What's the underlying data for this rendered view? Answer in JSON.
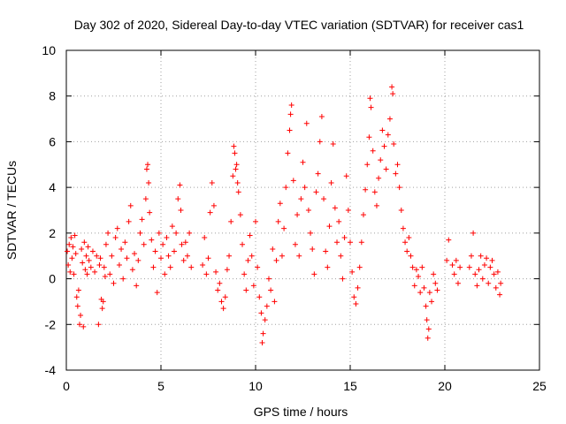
{
  "chart_data": {
    "type": "scatter",
    "title": "Day 302 of 2020, Sidereal Day-to-day VTEC variation (SDTVAR) for receiver cas1",
    "xlabel": "GPS time / hours",
    "ylabel": "SDTVAR / TECUs",
    "xlim": [
      0,
      25
    ],
    "ylim": [
      -4,
      10
    ],
    "xticks": [
      0,
      5,
      10,
      15,
      20,
      25
    ],
    "yticks": [
      -4,
      -2,
      0,
      2,
      4,
      6,
      8,
      10
    ],
    "grid": true,
    "marker": "+",
    "color": "#ff0000",
    "series": [
      {
        "name": "SDTVAR",
        "points": [
          [
            0.05,
            1.2
          ],
          [
            0.1,
            0.6
          ],
          [
            0.15,
            1.5
          ],
          [
            0.2,
            0.3
          ],
          [
            0.25,
            1.8
          ],
          [
            0.3,
            0.9
          ],
          [
            0.35,
            1.4
          ],
          [
            0.4,
            0.2
          ],
          [
            0.45,
            1.9
          ],
          [
            0.5,
            1.1
          ],
          [
            0.55,
            -0.8
          ],
          [
            0.6,
            -1.2
          ],
          [
            0.65,
            -0.5
          ],
          [
            0.7,
            -2.0
          ],
          [
            0.75,
            -1.6
          ],
          [
            0.8,
            1.3
          ],
          [
            0.85,
            0.7
          ],
          [
            0.9,
            -2.1
          ],
          [
            0.95,
            1.6
          ],
          [
            1.0,
            0.4
          ],
          [
            1.05,
            1.0
          ],
          [
            1.1,
            0.2
          ],
          [
            1.15,
            1.4
          ],
          [
            1.2,
            0.8
          ],
          [
            1.3,
            0.5
          ],
          [
            1.4,
            1.2
          ],
          [
            1.5,
            0.3
          ],
          [
            1.6,
            1.0
          ],
          [
            1.7,
            -2.0
          ],
          [
            1.75,
            0.6
          ],
          [
            1.8,
            0.9
          ],
          [
            1.85,
            -0.9
          ],
          [
            1.9,
            -1.3
          ],
          [
            1.95,
            -1.0
          ],
          [
            2.0,
            0.5
          ],
          [
            2.05,
            0.1
          ],
          [
            2.1,
            1.5
          ],
          [
            2.2,
            2.0
          ],
          [
            2.3,
            0.2
          ],
          [
            2.4,
            1.0
          ],
          [
            2.5,
            -0.2
          ],
          [
            2.6,
            1.8
          ],
          [
            2.7,
            2.2
          ],
          [
            2.8,
            0.6
          ],
          [
            2.9,
            1.3
          ],
          [
            3.0,
            0.0
          ],
          [
            3.1,
            1.6
          ],
          [
            3.2,
            0.9
          ],
          [
            3.3,
            2.5
          ],
          [
            3.4,
            3.2
          ],
          [
            3.5,
            0.4
          ],
          [
            3.6,
            1.1
          ],
          [
            3.7,
            -0.3
          ],
          [
            3.8,
            0.8
          ],
          [
            3.9,
            2.0
          ],
          [
            4.0,
            2.6
          ],
          [
            4.1,
            1.5
          ],
          [
            4.2,
            3.5
          ],
          [
            4.25,
            4.8
          ],
          [
            4.3,
            5.0
          ],
          [
            4.35,
            4.2
          ],
          [
            4.4,
            2.9
          ],
          [
            4.5,
            1.7
          ],
          [
            4.6,
            0.5
          ],
          [
            4.7,
            1.2
          ],
          [
            4.8,
            -0.6
          ],
          [
            4.9,
            2.0
          ],
          [
            5.0,
            0.9
          ],
          [
            5.1,
            1.5
          ],
          [
            5.2,
            0.2
          ],
          [
            5.3,
            1.8
          ],
          [
            5.4,
            1.0
          ],
          [
            5.5,
            0.5
          ],
          [
            5.6,
            2.3
          ],
          [
            5.7,
            1.2
          ],
          [
            5.8,
            2.0
          ],
          [
            5.9,
            3.5
          ],
          [
            6.0,
            4.1
          ],
          [
            6.05,
            3.0
          ],
          [
            6.1,
            1.5
          ],
          [
            6.2,
            0.8
          ],
          [
            6.3,
            1.6
          ],
          [
            6.4,
            1.0
          ],
          [
            6.5,
            2.0
          ],
          [
            6.6,
            0.5
          ],
          [
            7.2,
            0.6
          ],
          [
            7.3,
            1.8
          ],
          [
            7.4,
            0.2
          ],
          [
            7.5,
            0.9
          ],
          [
            7.6,
            2.9
          ],
          [
            7.7,
            4.2
          ],
          [
            7.8,
            3.2
          ],
          [
            7.9,
            0.3
          ],
          [
            8.0,
            -0.5
          ],
          [
            8.1,
            -0.2
          ],
          [
            8.2,
            -1.0
          ],
          [
            8.3,
            -1.3
          ],
          [
            8.4,
            -0.8
          ],
          [
            8.5,
            0.4
          ],
          [
            8.6,
            1.0
          ],
          [
            8.7,
            2.5
          ],
          [
            8.8,
            4.5
          ],
          [
            8.85,
            5.8
          ],
          [
            8.9,
            5.5
          ],
          [
            8.95,
            4.8
          ],
          [
            9.0,
            5.0
          ],
          [
            9.05,
            4.2
          ],
          [
            9.1,
            3.8
          ],
          [
            9.2,
            2.8
          ],
          [
            9.3,
            1.5
          ],
          [
            9.4,
            0.2
          ],
          [
            9.5,
            -0.5
          ],
          [
            9.6,
            0.8
          ],
          [
            9.7,
            1.9
          ],
          [
            9.8,
            1.0
          ],
          [
            9.9,
            -0.3
          ],
          [
            10.0,
            2.5
          ],
          [
            10.1,
            0.5
          ],
          [
            10.2,
            -0.8
          ],
          [
            10.3,
            -1.5
          ],
          [
            10.35,
            -2.8
          ],
          [
            10.4,
            -2.4
          ],
          [
            10.5,
            -1.8
          ],
          [
            10.6,
            -1.2
          ],
          [
            10.7,
            0.0
          ],
          [
            10.8,
            -0.5
          ],
          [
            10.9,
            1.3
          ],
          [
            11.0,
            -1.0
          ],
          [
            11.1,
            0.8
          ],
          [
            11.2,
            2.5
          ],
          [
            11.3,
            3.3
          ],
          [
            11.4,
            1.0
          ],
          [
            11.5,
            2.2
          ],
          [
            11.6,
            4.0
          ],
          [
            11.7,
            5.5
          ],
          [
            11.8,
            6.5
          ],
          [
            11.85,
            7.2
          ],
          [
            11.9,
            7.6
          ],
          [
            12.0,
            4.3
          ],
          [
            12.1,
            1.5
          ],
          [
            12.2,
            2.8
          ],
          [
            12.3,
            1.0
          ],
          [
            12.4,
            3.5
          ],
          [
            12.5,
            5.1
          ],
          [
            12.6,
            4.0
          ],
          [
            12.7,
            6.8
          ],
          [
            12.8,
            3.0
          ],
          [
            12.9,
            2.0
          ],
          [
            13.0,
            1.3
          ],
          [
            13.1,
            0.2
          ],
          [
            13.2,
            3.8
          ],
          [
            13.3,
            4.6
          ],
          [
            13.4,
            6.0
          ],
          [
            13.5,
            7.1
          ],
          [
            13.6,
            3.5
          ],
          [
            13.7,
            1.2
          ],
          [
            13.8,
            0.5
          ],
          [
            13.9,
            2.3
          ],
          [
            14.0,
            4.2
          ],
          [
            14.1,
            5.9
          ],
          [
            14.2,
            3.1
          ],
          [
            14.3,
            1.6
          ],
          [
            14.4,
            2.5
          ],
          [
            14.5,
            1.0
          ],
          [
            14.6,
            0.0
          ],
          [
            14.7,
            1.8
          ],
          [
            14.8,
            4.5
          ],
          [
            14.9,
            3.0
          ],
          [
            15.0,
            1.6
          ],
          [
            15.1,
            0.3
          ],
          [
            15.2,
            -0.8
          ],
          [
            15.3,
            -1.1
          ],
          [
            15.4,
            -0.4
          ],
          [
            15.5,
            0.5
          ],
          [
            15.6,
            1.6
          ],
          [
            15.7,
            2.8
          ],
          [
            15.8,
            3.9
          ],
          [
            15.9,
            5.0
          ],
          [
            16.0,
            6.2
          ],
          [
            16.05,
            7.9
          ],
          [
            16.1,
            7.5
          ],
          [
            16.2,
            5.6
          ],
          [
            16.3,
            3.8
          ],
          [
            16.4,
            3.2
          ],
          [
            16.5,
            4.4
          ],
          [
            16.6,
            5.2
          ],
          [
            16.7,
            6.5
          ],
          [
            16.8,
            5.8
          ],
          [
            16.9,
            4.8
          ],
          [
            17.0,
            6.3
          ],
          [
            17.1,
            7.0
          ],
          [
            17.2,
            8.4
          ],
          [
            17.25,
            8.1
          ],
          [
            17.3,
            5.9
          ],
          [
            17.4,
            4.6
          ],
          [
            17.5,
            5.0
          ],
          [
            17.6,
            4.0
          ],
          [
            17.7,
            3.0
          ],
          [
            17.8,
            2.2
          ],
          [
            17.9,
            1.6
          ],
          [
            18.0,
            1.2
          ],
          [
            18.1,
            1.8
          ],
          [
            18.2,
            1.0
          ],
          [
            18.3,
            0.5
          ],
          [
            18.4,
            -0.3
          ],
          [
            18.5,
            0.4
          ],
          [
            18.6,
            0.1
          ],
          [
            18.7,
            -0.6
          ],
          [
            18.8,
            0.5
          ],
          [
            18.9,
            -0.4
          ],
          [
            19.0,
            -1.2
          ],
          [
            19.05,
            -1.8
          ],
          [
            19.1,
            -2.6
          ],
          [
            19.15,
            -2.2
          ],
          [
            19.2,
            -0.6
          ],
          [
            19.3,
            -1.0
          ],
          [
            19.4,
            0.2
          ],
          [
            19.5,
            -0.2
          ],
          [
            19.6,
            -0.5
          ],
          [
            20.1,
            0.8
          ],
          [
            20.2,
            1.7
          ],
          [
            20.4,
            0.6
          ],
          [
            20.5,
            0.2
          ],
          [
            20.6,
            0.8
          ],
          [
            20.7,
            -0.2
          ],
          [
            20.8,
            0.5
          ],
          [
            21.3,
            0.5
          ],
          [
            21.4,
            1.0
          ],
          [
            21.5,
            2.0
          ],
          [
            21.6,
            0.2
          ],
          [
            21.7,
            -0.3
          ],
          [
            21.8,
            0.4
          ],
          [
            21.9,
            1.0
          ],
          [
            22.0,
            0.0
          ],
          [
            22.1,
            0.6
          ],
          [
            22.2,
            0.9
          ],
          [
            22.3,
            -0.2
          ],
          [
            22.4,
            0.5
          ],
          [
            22.5,
            0.8
          ],
          [
            22.6,
            0.2
          ],
          [
            22.7,
            -0.4
          ],
          [
            22.8,
            0.3
          ],
          [
            22.9,
            -0.7
          ],
          [
            22.95,
            -0.2
          ]
        ]
      }
    ]
  }
}
